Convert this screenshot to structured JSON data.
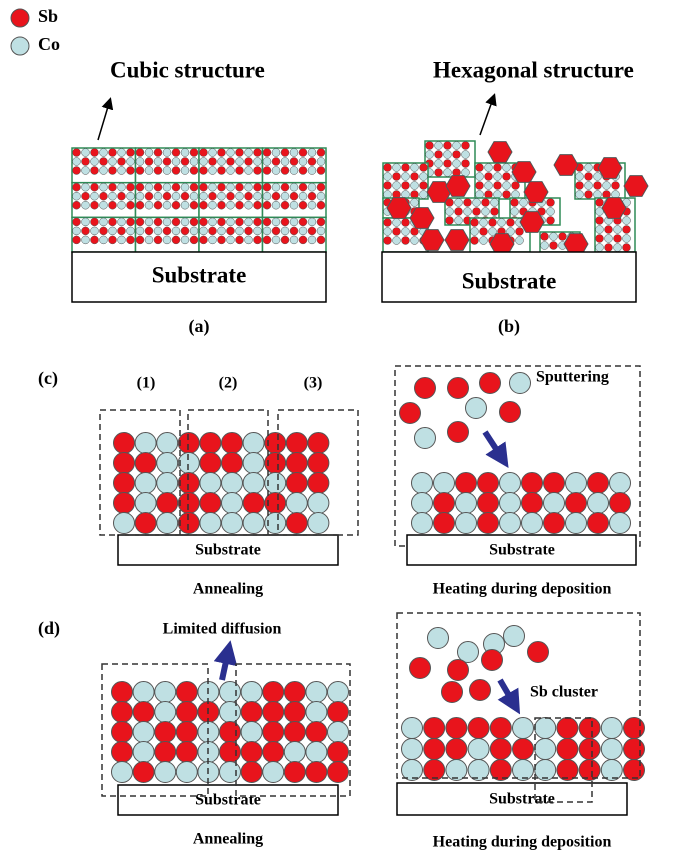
{
  "legend": [
    {
      "label": "Sb"
    },
    {
      "label": "Co"
    }
  ],
  "panel_a": {
    "title": "Cubic structure",
    "substrate": "Substrate",
    "label": "(a)"
  },
  "panel_b": {
    "title": "Hexagonal structure",
    "substrate": "Substrate",
    "label": "(b)"
  },
  "panel_c": {
    "label": "(c)",
    "regions": [
      "(1)",
      "(2)",
      "(3)"
    ],
    "left": {
      "substrate": "Substrate",
      "caption": "Annealing"
    },
    "right": {
      "annotation": "Sputtering",
      "substrate": "Substrate",
      "caption": "Heating during deposition"
    }
  },
  "panel_d": {
    "label": "(d)",
    "left": {
      "annotation": "Limited diffusion",
      "substrate": "Substrate",
      "caption": "Annealing"
    },
    "right": {
      "annotation": "Sb cluster",
      "substrate": "Substrate",
      "caption": "Heating during deposition"
    }
  }
}
